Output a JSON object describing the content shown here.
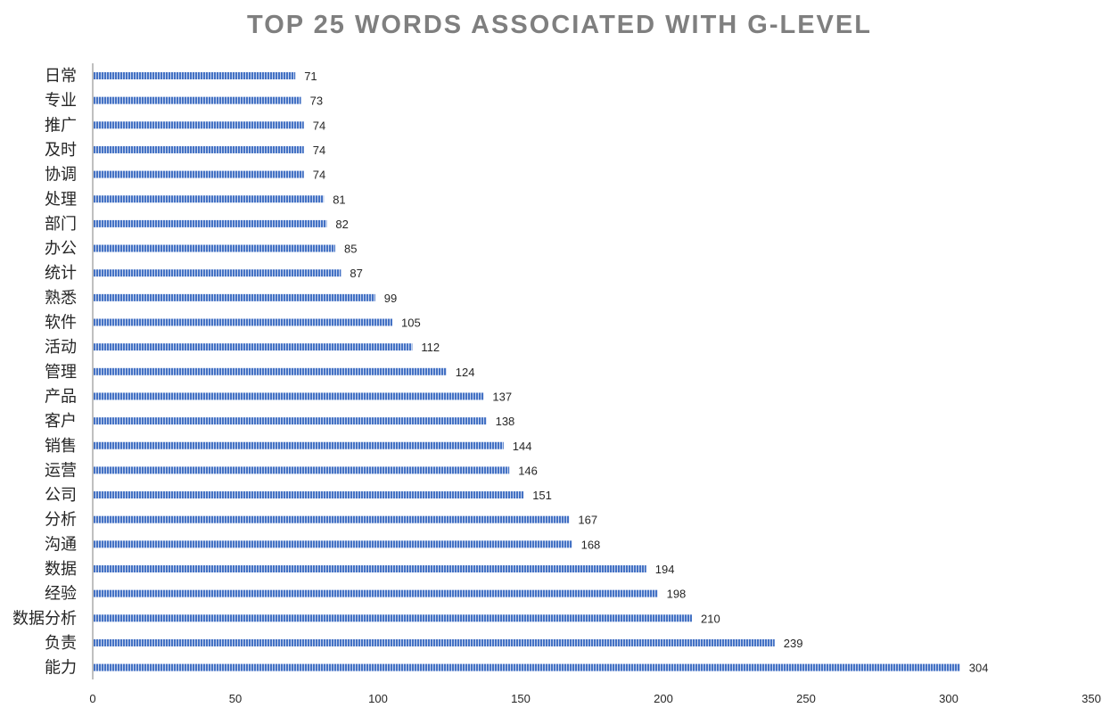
{
  "chart_data": {
    "type": "bar",
    "orientation": "horizontal",
    "title": "TOP 25 WORDS ASSOCIATED WITH G-LEVEL",
    "xlabel": "",
    "ylabel": "",
    "categories": [
      "日常",
      "专业",
      "推广",
      "及时",
      "协调",
      "处理",
      "部门",
      "办公",
      "统计",
      "熟悉",
      "软件",
      "活动",
      "管理",
      "产品",
      "客户",
      "销售",
      "运营",
      "公司",
      "分析",
      "沟通",
      "数据",
      "经验",
      "数据分析",
      "负责",
      "能力"
    ],
    "values": [
      71,
      73,
      74,
      74,
      74,
      81,
      82,
      85,
      87,
      99,
      105,
      112,
      124,
      137,
      138,
      144,
      146,
      151,
      167,
      168,
      194,
      198,
      210,
      239,
      304
    ],
    "xlim": [
      0,
      350
    ],
    "x_ticks": [
      0,
      50,
      100,
      150,
      200,
      250,
      300,
      350
    ],
    "grid": false,
    "legend": "none",
    "data_labels": true,
    "bar_color": "#4472c4",
    "bar_stripe_color": "#c9d6f0"
  }
}
